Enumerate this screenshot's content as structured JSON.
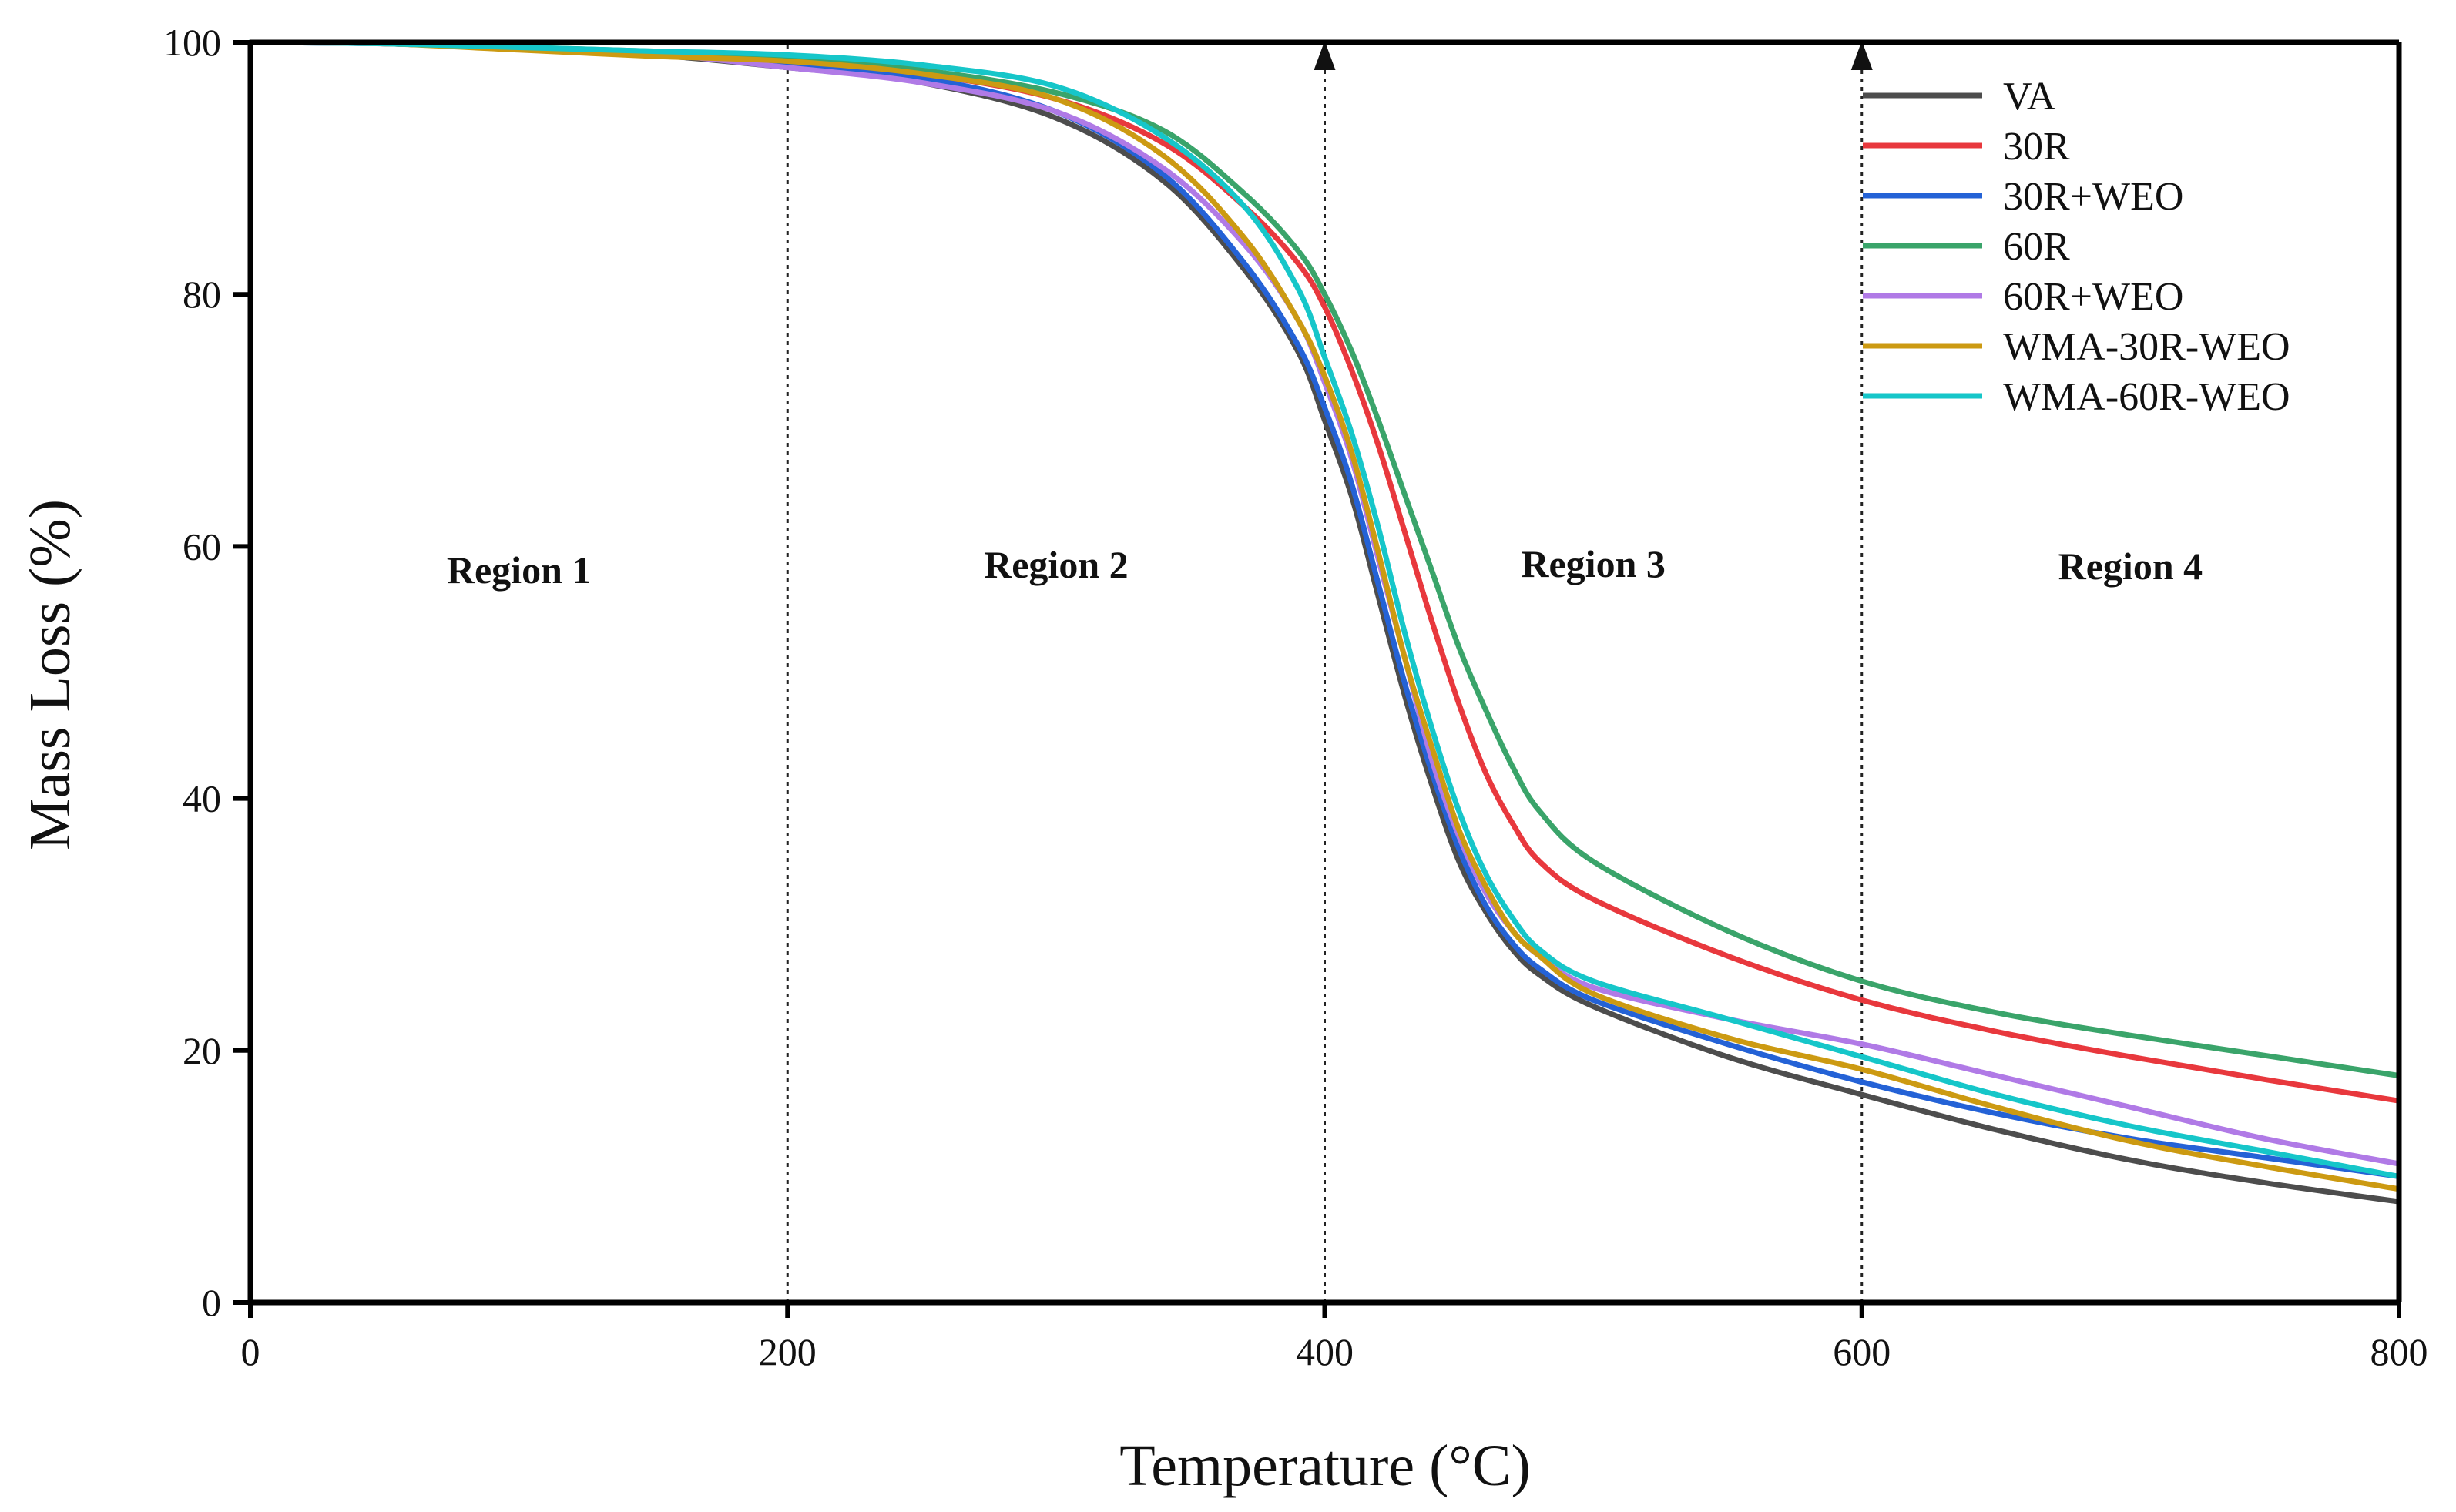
{
  "chart_data": {
    "type": "line",
    "title": "",
    "xlabel": "Temperature (°C)",
    "ylabel": "Mass Loss (%)",
    "xlim": [
      0,
      800
    ],
    "ylim": [
      0,
      100
    ],
    "x_ticks": [
      "0",
      "200",
      "400",
      "600",
      "800"
    ],
    "y_ticks": [
      "0",
      "20",
      "40",
      "60",
      "80",
      "100"
    ],
    "grid": false,
    "legend_position": "top-right",
    "regions": [
      {
        "label": "Region 1",
        "from": 0,
        "to": 200
      },
      {
        "label": "Region 2",
        "from": 200,
        "to": 400
      },
      {
        "label": "Region 3",
        "from": 400,
        "to": 600
      },
      {
        "label": "Region 4",
        "from": 600,
        "to": 800
      }
    ],
    "dividers": [
      200,
      400,
      600
    ],
    "arrow_dividers": [
      400,
      600
    ],
    "x": [
      0,
      50,
      100,
      150,
      200,
      250,
      300,
      340,
      370,
      390,
      400,
      410,
      420,
      430,
      440,
      450,
      460,
      470,
      480,
      500,
      550,
      600,
      650,
      700,
      750,
      800
    ],
    "series": [
      {
        "name": "VA",
        "color": "#4d4d4d",
        "values": [
          100,
          99.9,
          99.5,
          99,
          98,
          96.8,
          94,
          89,
          82,
          75.5,
          70,
          64,
          56,
          48,
          41,
          35,
          31,
          28,
          26,
          23.5,
          19.5,
          16.5,
          13.7,
          11.3,
          9.5,
          8
        ]
      },
      {
        "name": "30R",
        "color": "#e8383d",
        "values": [
          100,
          99.9,
          99.5,
          99,
          98.5,
          97.5,
          95.5,
          92,
          87,
          82.5,
          79,
          74,
          68,
          61,
          54,
          47.5,
          42,
          38,
          35,
          32,
          27.5,
          24,
          21.5,
          19.5,
          17.7,
          16
        ]
      },
      {
        "name": "30R+WEO",
        "color": "#2462d6",
        "values": [
          100,
          99.9,
          99.6,
          99.1,
          98.3,
          97.2,
          94.5,
          89.5,
          82.5,
          76,
          71,
          65,
          57,
          49,
          42,
          36,
          31.5,
          28.5,
          26.5,
          24,
          20.5,
          17.5,
          15,
          13,
          11.5,
          10
        ]
      },
      {
        "name": "60R",
        "color": "#3aa46a",
        "values": [
          100,
          99.9,
          99.6,
          99.3,
          98.8,
          97.8,
          96,
          93,
          88,
          83.5,
          80,
          75.5,
          70,
          64,
          58,
          52,
          47,
          42.5,
          39,
          35,
          29.5,
          25.5,
          23,
          21.2,
          19.6,
          18
        ]
      },
      {
        "name": "60R+WEO",
        "color": "#b07ae6",
        "values": [
          100,
          99.9,
          99.6,
          99.1,
          98,
          96.8,
          94.5,
          90,
          84,
          78,
          73,
          67,
          59,
          51,
          43,
          37,
          32.5,
          29.5,
          27.5,
          25,
          22.5,
          20.5,
          18,
          15.5,
          13,
          11
        ]
      },
      {
        "name": "WMA-30R-WEO",
        "color": "#cc9a12",
        "values": [
          100,
          99.9,
          99.4,
          98.9,
          98.5,
          97.5,
          95.5,
          91,
          84.5,
          78,
          73.5,
          67.5,
          59.5,
          51,
          44,
          37.5,
          33,
          29.5,
          27.5,
          24.5,
          21,
          18.5,
          15.5,
          12.8,
          10.8,
          9
        ]
      },
      {
        "name": "WMA-60R-WEO",
        "color": "#16c6c9",
        "values": [
          100,
          99.9,
          99.6,
          99.3,
          99,
          98.2,
          96.5,
          92.5,
          87,
          80.5,
          75,
          69,
          61.5,
          53,
          45.5,
          39,
          34,
          30.5,
          28,
          25.5,
          22.5,
          19.5,
          16.5,
          14,
          12,
          10
        ]
      }
    ]
  }
}
